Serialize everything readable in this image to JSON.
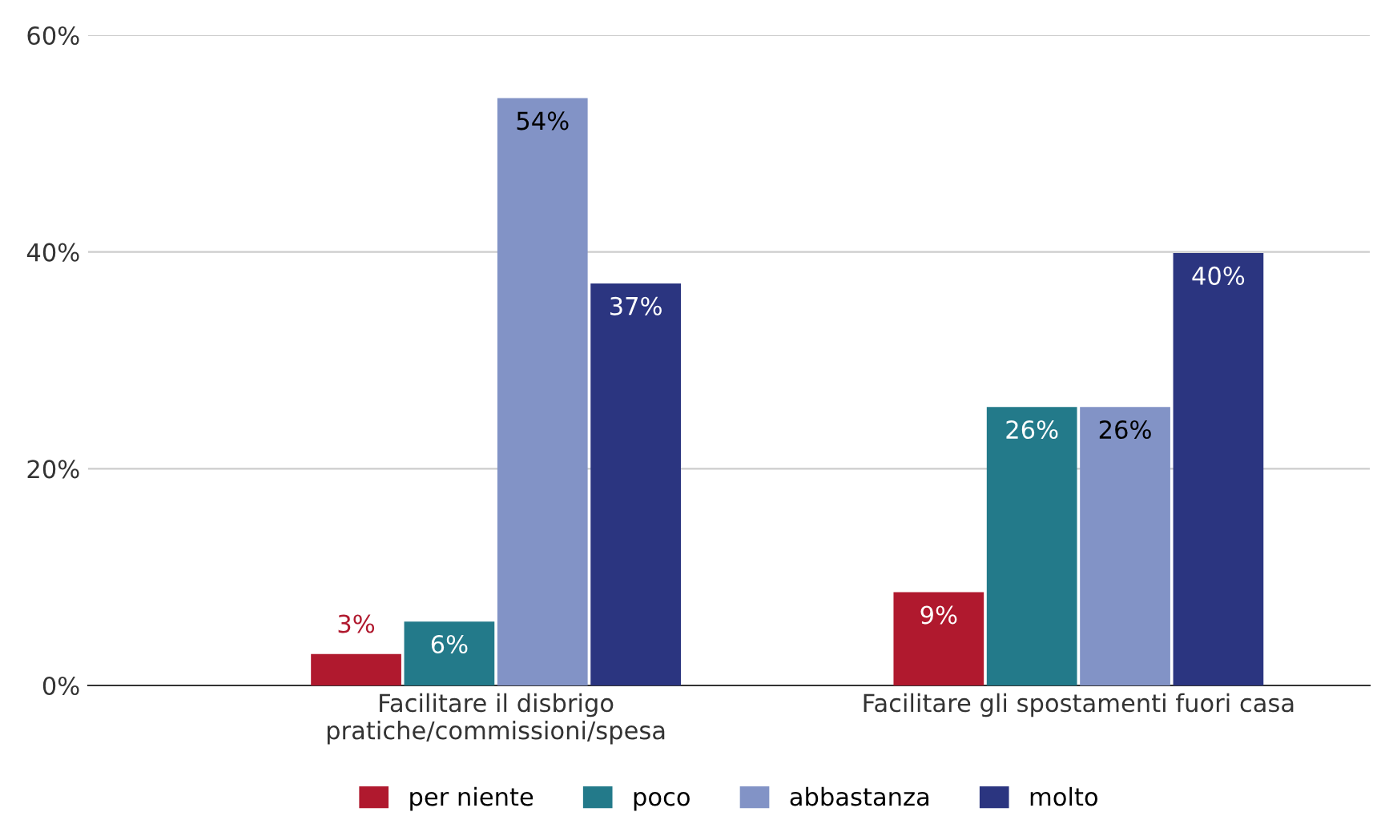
{
  "chart_data": {
    "type": "bar",
    "categories": [
      "Facilitare il disbrigo\npratiche/commissioni/spesa",
      "Facilitare gli spostamenti fuori casa"
    ],
    "series": [
      {
        "name": "per niente",
        "color": "#b0192e",
        "values": [
          2.9,
          8.6
        ],
        "value_labels": [
          "3%",
          "9%"
        ]
      },
      {
        "name": "poco",
        "color": "#237a8a",
        "values": [
          5.9,
          25.7
        ],
        "value_labels": [
          "6%",
          "26%"
        ]
      },
      {
        "name": "abbastanza",
        "color": "#8293c6",
        "values": [
          54.2,
          25.7
        ],
        "value_labels": [
          "54%",
          "26%"
        ]
      },
      {
        "name": "molto",
        "color": "#2b3580",
        "values": [
          37.1,
          39.9
        ],
        "value_labels": [
          "37%",
          "40%"
        ]
      }
    ],
    "ylim": [
      0,
      60
    ],
    "yticks": [
      {
        "value": 0,
        "label": "0%"
      },
      {
        "value": 20,
        "label": "20%"
      },
      {
        "value": 40,
        "label": "40%"
      },
      {
        "value": 60,
        "label": "60%"
      }
    ],
    "grid": "y",
    "legend": "bottom"
  }
}
